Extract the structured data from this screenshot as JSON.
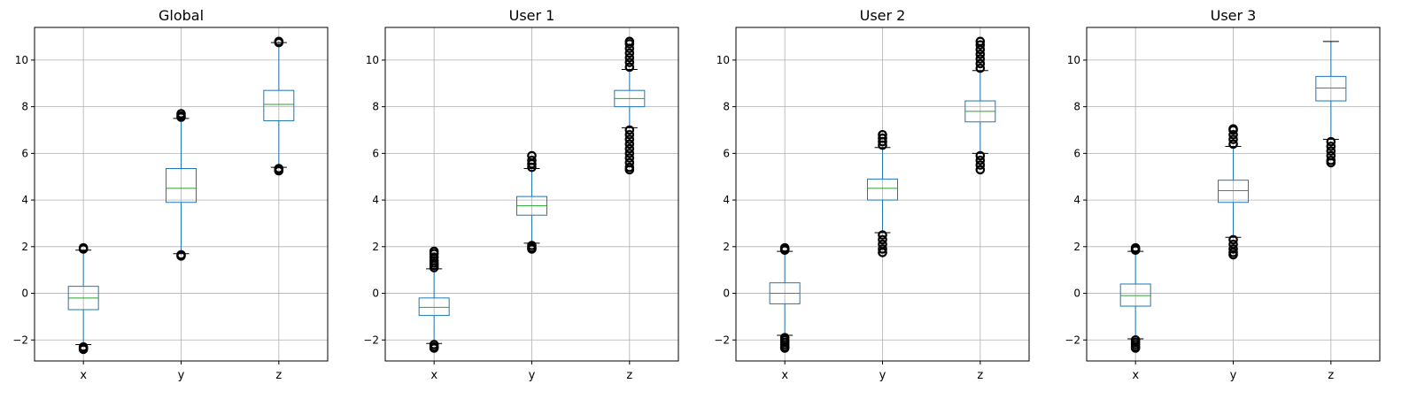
{
  "chart_data": [
    {
      "type": "box",
      "title": "Global",
      "categories": [
        "x",
        "y",
        "z"
      ],
      "ylim": [
        -2.9,
        11.4
      ],
      "yticks": [
        -2,
        0,
        2,
        4,
        6,
        8,
        10
      ],
      "grid": true,
      "boxes": [
        {
          "label": "x",
          "whisker_low": -2.2,
          "q1": -0.7,
          "median": -0.2,
          "q3": 0.3,
          "whisker_high": 1.85,
          "outliers": [
            -2.3,
            -2.35,
            -2.4,
            1.9,
            1.95
          ]
        },
        {
          "label": "y",
          "whisker_low": 1.7,
          "q1": 3.9,
          "median": 4.5,
          "q3": 5.35,
          "whisker_high": 7.5,
          "outliers": [
            1.65,
            1.6,
            7.55,
            7.6,
            7.7
          ]
        },
        {
          "label": "z",
          "whisker_low": 5.4,
          "q1": 7.4,
          "median": 8.1,
          "q3": 8.7,
          "whisker_high": 10.75,
          "outliers": [
            5.35,
            5.3,
            5.25,
            10.75,
            10.8
          ]
        }
      ]
    },
    {
      "type": "box",
      "title": "User 1",
      "categories": [
        "x",
        "y",
        "z"
      ],
      "ylim": [
        -2.9,
        11.4
      ],
      "yticks": [
        -2,
        0,
        2,
        4,
        6,
        8,
        10
      ],
      "grid": true,
      "boxes": [
        {
          "label": "x",
          "whisker_low": -2.15,
          "q1": -0.95,
          "median": -0.6,
          "q3": -0.2,
          "whisker_high": 1.05,
          "outliers": [
            -2.2,
            -2.3,
            -2.35,
            1.1,
            1.2,
            1.3,
            1.4,
            1.55,
            1.7,
            1.8
          ]
        },
        {
          "label": "y",
          "whisker_low": 2.15,
          "q1": 3.35,
          "median": 3.75,
          "q3": 4.15,
          "whisker_high": 5.35,
          "outliers": [
            2.05,
            1.95,
            1.9,
            5.4,
            5.55,
            5.7,
            5.9
          ]
        },
        {
          "label": "z",
          "whisker_low": 7.1,
          "q1": 8.0,
          "median": 8.35,
          "q3": 8.7,
          "whisker_high": 9.6,
          "outliers": [
            7.0,
            6.8,
            6.6,
            6.4,
            6.2,
            6.0,
            5.8,
            5.6,
            5.4,
            5.3,
            9.7,
            9.9,
            10.1,
            10.3,
            10.5,
            10.7,
            10.8
          ]
        }
      ]
    },
    {
      "type": "box",
      "title": "User 2",
      "categories": [
        "x",
        "y",
        "z"
      ],
      "ylim": [
        -2.9,
        11.4
      ],
      "yticks": [
        -2,
        0,
        2,
        4,
        6,
        8,
        10
      ],
      "grid": true,
      "boxes": [
        {
          "label": "x",
          "whisker_low": -1.8,
          "q1": -0.45,
          "median": 0.0,
          "q3": 0.45,
          "whisker_high": 1.8,
          "outliers": [
            -1.9,
            -2.0,
            -2.1,
            -2.2,
            -2.3,
            -2.35,
            1.85,
            1.9,
            1.95
          ]
        },
        {
          "label": "y",
          "whisker_low": 2.6,
          "q1": 4.0,
          "median": 4.5,
          "q3": 4.9,
          "whisker_high": 6.25,
          "outliers": [
            2.5,
            2.3,
            2.1,
            1.9,
            1.75,
            6.35,
            6.5,
            6.65,
            6.8
          ]
        },
        {
          "label": "z",
          "whisker_low": 6.0,
          "q1": 7.35,
          "median": 7.8,
          "q3": 8.25,
          "whisker_high": 9.55,
          "outliers": [
            5.9,
            5.7,
            5.5,
            5.3,
            9.65,
            9.85,
            10.05,
            10.25,
            10.45,
            10.65,
            10.8
          ]
        }
      ]
    },
    {
      "type": "box",
      "title": "User 3",
      "categories": [
        "x",
        "y",
        "z"
      ],
      "ylim": [
        -2.9,
        11.4
      ],
      "yticks": [
        -2,
        0,
        2,
        4,
        6,
        8,
        10
      ],
      "grid": true,
      "boxes": [
        {
          "label": "x",
          "whisker_low": -1.95,
          "q1": -0.55,
          "median": -0.1,
          "q3": 0.4,
          "whisker_high": 1.8,
          "outliers": [
            -2.0,
            -2.1,
            -2.2,
            -2.3,
            -2.35,
            1.85,
            1.9,
            1.95
          ]
        },
        {
          "label": "y",
          "whisker_low": 2.4,
          "q1": 3.9,
          "median": 4.4,
          "q3": 4.85,
          "whisker_high": 6.3,
          "outliers": [
            2.3,
            2.1,
            1.9,
            1.75,
            1.65,
            6.4,
            6.6,
            6.8,
            7.0,
            7.05
          ]
        },
        {
          "label": "z",
          "whisker_low": 6.6,
          "q1": 8.25,
          "median": 8.8,
          "q3": 9.3,
          "whisker_high": 10.8,
          "outliers": [
            6.5,
            6.3,
            6.1,
            5.9,
            5.7,
            5.6
          ]
        }
      ]
    }
  ],
  "colors": {
    "box": "#1f77b4",
    "median": "#2ca02c",
    "grid": "#b0b0b0",
    "axes": "#000000",
    "outlier": "#000000"
  }
}
